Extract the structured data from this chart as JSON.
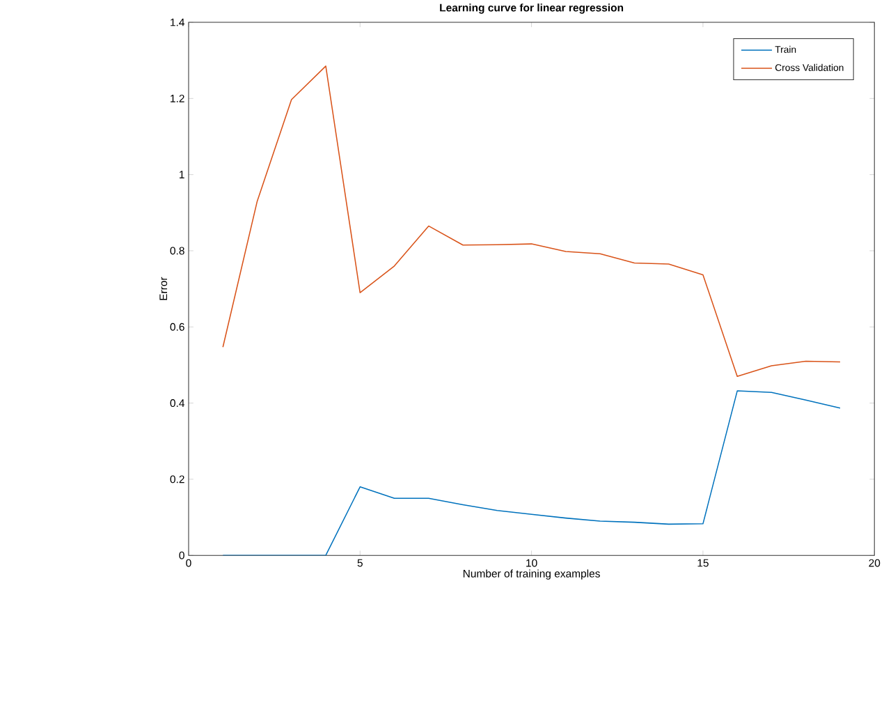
{
  "chart_data": {
    "type": "line",
    "title": "Learning curve for linear regression",
    "xlabel": "Number of training examples",
    "ylabel": "Error",
    "x": [
      1,
      2,
      3,
      4,
      5,
      6,
      7,
      8,
      9,
      10,
      11,
      12,
      13,
      14,
      15,
      16,
      17,
      18,
      19
    ],
    "series": [
      {
        "name": "Train",
        "color": "#0072bd",
        "values": [
          0,
          0,
          0,
          0,
          0.18,
          0.15,
          0.15,
          0.133,
          0.118,
          0.108,
          0.098,
          0.09,
          0.087,
          0.082,
          0.083,
          0.432,
          0.428,
          0.408,
          0.387
        ]
      },
      {
        "name": "Cross Validation",
        "color": "#d95319",
        "values": [
          0.547,
          0.93,
          1.197,
          1.285,
          0.69,
          0.76,
          0.865,
          0.815,
          0.816,
          0.818,
          0.798,
          0.792,
          0.768,
          0.765,
          0.737,
          0.47,
          0.498,
          0.51,
          0.508
        ]
      }
    ],
    "xlim": [
      0,
      20
    ],
    "ylim": [
      0,
      1.4
    ],
    "xticks": [
      0,
      5,
      10,
      15,
      20
    ],
    "yticks": [
      0,
      0.2,
      0.4,
      0.6,
      0.8,
      1,
      1.2,
      1.4
    ],
    "legend": "top right"
  }
}
